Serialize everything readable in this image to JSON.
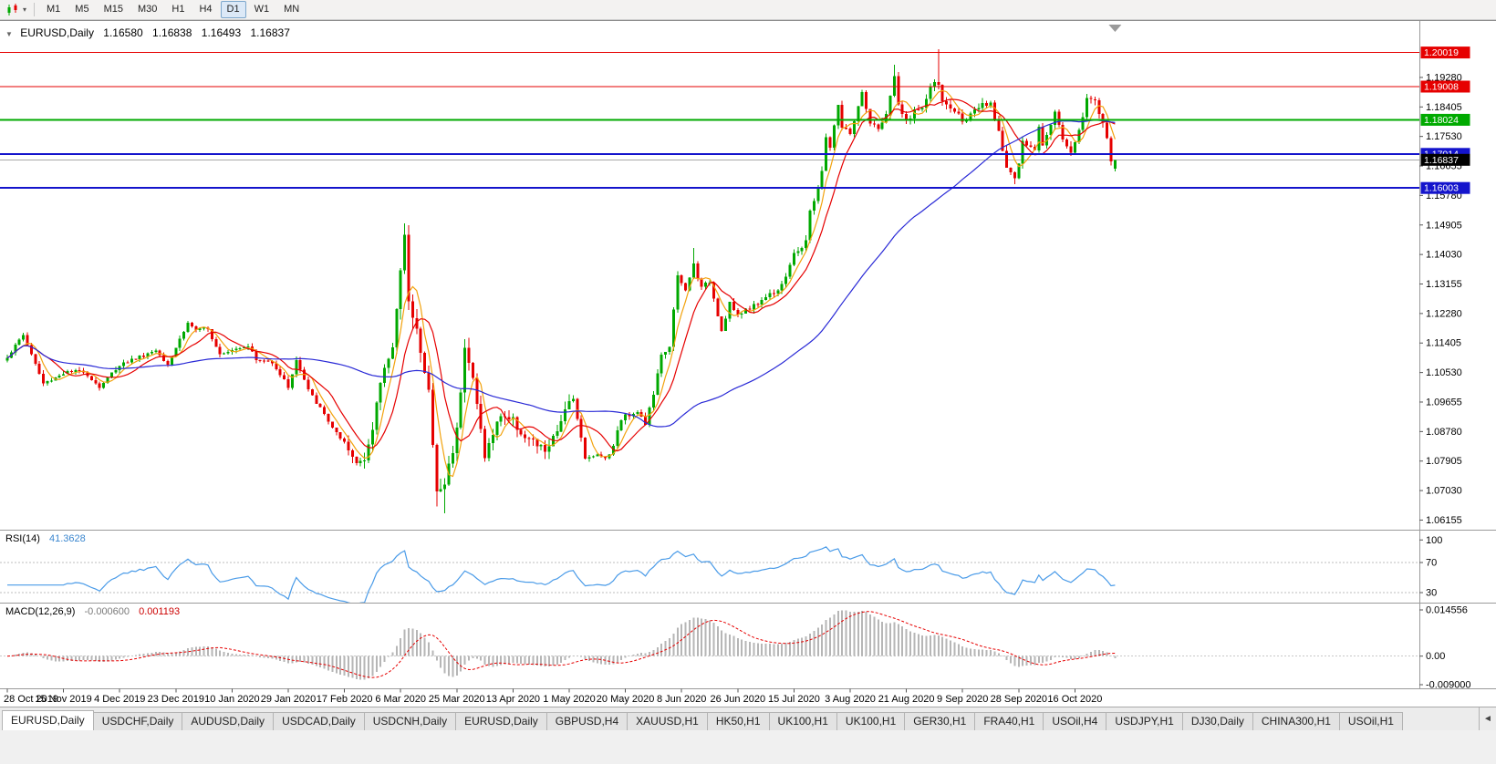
{
  "icons": {
    "collapse": "▼",
    "dropdown": "▾",
    "tabs_scroll_left": "◄"
  },
  "toolbar": {
    "timeframes": [
      {
        "label": "M1",
        "active": false
      },
      {
        "label": "M5",
        "active": false
      },
      {
        "label": "M15",
        "active": false
      },
      {
        "label": "M30",
        "active": false
      },
      {
        "label": "H1",
        "active": false
      },
      {
        "label": "H4",
        "active": false
      },
      {
        "label": "D1",
        "active": true
      },
      {
        "label": "W1",
        "active": false
      },
      {
        "label": "MN",
        "active": false
      }
    ]
  },
  "chart": {
    "title": {
      "symbol_period": "EURUSD,Daily",
      "open": "1.16580",
      "high": "1.16838",
      "low": "1.16493",
      "close": "1.16837"
    }
  },
  "chart_data": {
    "type": "candlestick",
    "symbol": "EURUSD",
    "period": "Daily",
    "ohlc_current": {
      "open": 1.1658,
      "high": 1.16838,
      "low": 1.16493,
      "close": 1.16837
    },
    "bar_count": 277,
    "bars_per_date_tick": 14,
    "date_ticks": [
      "28 Oct 2019",
      "15 Nov 2019",
      "4 Dec 2019",
      "23 Dec 2019",
      "10 Jan 2020",
      "29 Jan 2020",
      "17 Feb 2020",
      "6 Mar 2020",
      "25 Mar 2020",
      "13 Apr 2020",
      "1 May 2020",
      "20 May 2020",
      "8 Jun 2020",
      "26 Jun 2020",
      "15 Jul 2020",
      "3 Aug 2020",
      "21 Aug 2020",
      "9 Sep 2020",
      "28 Sep 2020",
      "16 Oct 2020"
    ],
    "view": {
      "price_max": 1.209,
      "price_min": 1.0587
    },
    "price_axis_ticks": [
      "1.19280",
      "1.18405",
      "1.17530",
      "1.16655",
      "1.15780",
      "1.14905",
      "1.14030",
      "1.13155",
      "1.12280",
      "1.11405",
      "1.10530",
      "1.09655",
      "1.08780",
      "1.07905",
      "1.07030",
      "1.06155"
    ],
    "levels": [
      {
        "label": "1.20019",
        "value": 1.20019,
        "color": "#e60000",
        "thickness": 1
      },
      {
        "label": "1.19008",
        "value": 1.19008,
        "color": "#e60000",
        "thickness": 1
      },
      {
        "label": "1.18024",
        "value": 1.18024,
        "color": "#00aa00",
        "thickness": 2
      },
      {
        "label": "1.17014",
        "value": 1.17014,
        "color": "#1414cc",
        "thickness": 2
      },
      {
        "label": "1.16003",
        "value": 1.16003,
        "color": "#1414cc",
        "thickness": 2
      }
    ],
    "current_price": {
      "label": "1.16837",
      "value": 1.16837,
      "bg": "#000000",
      "line_color": "#a9a9a9"
    },
    "price_path_anchors": {
      "indices": [
        0,
        4,
        9,
        14,
        19,
        23,
        28,
        33,
        37,
        40,
        45,
        47,
        50,
        53,
        56,
        60,
        62,
        66,
        70,
        72,
        75,
        80,
        84,
        87,
        89,
        91,
        93,
        96,
        99,
        100,
        102,
        103,
        105,
        107,
        109,
        112,
        114,
        116,
        119,
        123,
        126,
        129,
        134,
        137,
        139,
        141,
        144,
        146,
        150,
        153,
        154,
        157,
        159,
        161,
        163,
        165,
        167,
        169,
        171,
        173,
        175,
        178,
        180,
        182,
        184,
        186,
        189,
        192,
        194,
        196,
        198,
        199,
        200,
        202,
        203,
        204,
        205,
        206,
        207,
        208,
        210,
        213,
        215,
        217,
        219,
        221,
        222,
        224,
        226,
        228,
        230,
        232,
        233,
        235,
        238,
        240,
        243,
        245,
        247,
        249,
        251,
        252,
        253,
        254,
        256,
        257,
        258,
        261,
        263,
        265,
        267,
        269,
        271,
        273,
        274,
        275,
        276
      ],
      "closes": [
        1.11,
        1.1165,
        1.102,
        1.1052,
        1.1058,
        1.101,
        1.1077,
        1.11,
        1.112,
        1.108,
        1.12,
        1.118,
        1.118,
        1.111,
        1.1122,
        1.1135,
        1.109,
        1.1085,
        1.101,
        1.109,
        1.1,
        1.091,
        1.0835,
        1.0785,
        1.0805,
        1.088,
        1.1026,
        1.114,
        1.1446,
        1.1281,
        1.1184,
        1.1106,
        1.0995,
        1.0693,
        1.0724,
        1.0881,
        1.114,
        1.103,
        1.0808,
        1.093,
        1.091,
        1.086,
        1.0822,
        1.087,
        1.0955,
        1.098,
        1.0795,
        1.081,
        1.0805,
        1.0915,
        1.0924,
        1.094,
        1.09,
        1.099,
        1.1101,
        1.1134,
        1.1337,
        1.1295,
        1.1374,
        1.1302,
        1.1324,
        1.1177,
        1.1261,
        1.1218,
        1.1242,
        1.125,
        1.1279,
        1.13,
        1.134,
        1.14,
        1.1427,
        1.1448,
        1.1527,
        1.1596,
        1.1656,
        1.1752,
        1.1716,
        1.179,
        1.1846,
        1.1778,
        1.1762,
        1.1876,
        1.1787,
        1.178,
        1.1814,
        1.1934,
        1.184,
        1.1797,
        1.1832,
        1.183,
        1.1903,
        1.1911,
        1.1854,
        1.1838,
        1.1805,
        1.1815,
        1.1845,
        1.1845,
        1.1772,
        1.1661,
        1.1631,
        1.1664,
        1.1742,
        1.1721,
        1.1716,
        1.1784,
        1.1733,
        1.1826,
        1.1745,
        1.1709,
        1.177,
        1.1862,
        1.186,
        1.1795,
        1.1746,
        1.1672,
        1.16837
      ]
    },
    "extreme_overrides": [
      {
        "index": 87,
        "low": 1.0778
      },
      {
        "index": 99,
        "high": 1.1495
      },
      {
        "index": 107,
        "low": 1.0656
      },
      {
        "index": 109,
        "low": 1.0636
      },
      {
        "index": 171,
        "high": 1.1422
      },
      {
        "index": 221,
        "high": 1.1966
      },
      {
        "index": 232,
        "high": 1.2011
      },
      {
        "index": 251,
        "low": 1.1612
      }
    ],
    "candle_colors": {
      "up": "#00a800",
      "down": "#e60000"
    },
    "moving_averages": [
      {
        "name": "fast-ma",
        "period": 5,
        "color": "#f2a20d"
      },
      {
        "name": "medium-ma",
        "period": 10,
        "color": "#e60000"
      },
      {
        "name": "slow-ma",
        "period": 60,
        "color": "#2929d6"
      }
    ],
    "rsi": {
      "label": "RSI(14)",
      "value": "41.3628",
      "period": 14,
      "levels": [
        "100",
        "70",
        "30"
      ],
      "color": "#4a9be8"
    },
    "macd": {
      "label": "MACD(12,26,9)",
      "macd_value": "-0.000600",
      "signal_value": "0.001193",
      "fast": 12,
      "slow": 26,
      "signal": 9,
      "axis_labels": [
        {
          "text": "0.014556",
          "value": 0.014556
        },
        {
          "text": "0.00",
          "value": 0
        },
        {
          "text": "-0.009000",
          "value": -0.009
        }
      ],
      "histogram_color": "#b6b6b6",
      "signal_color": "#e60000"
    }
  },
  "tabs": {
    "items": [
      {
        "label": "EURUSD,Daily",
        "active": true
      },
      {
        "label": "USDCHF,Daily",
        "active": false
      },
      {
        "label": "AUDUSD,Daily",
        "active": false
      },
      {
        "label": "USDCAD,Daily",
        "active": false
      },
      {
        "label": "USDCNH,Daily",
        "active": false
      },
      {
        "label": "EURUSD,Daily",
        "active": false
      },
      {
        "label": "GBPUSD,H4",
        "active": false
      },
      {
        "label": "XAUUSD,H1",
        "active": false
      },
      {
        "label": "HK50,H1",
        "active": false
      },
      {
        "label": "UK100,H1",
        "active": false
      },
      {
        "label": "UK100,H1",
        "active": false
      },
      {
        "label": "GER30,H1",
        "active": false
      },
      {
        "label": "FRA40,H1",
        "active": false
      },
      {
        "label": "USOil,H4",
        "active": false
      },
      {
        "label": "USDJPY,H1",
        "active": false
      },
      {
        "label": "DJ30,Daily",
        "active": false
      },
      {
        "label": "CHINA300,H1",
        "active": false
      },
      {
        "label": "USOil,H1",
        "active": false
      }
    ]
  }
}
